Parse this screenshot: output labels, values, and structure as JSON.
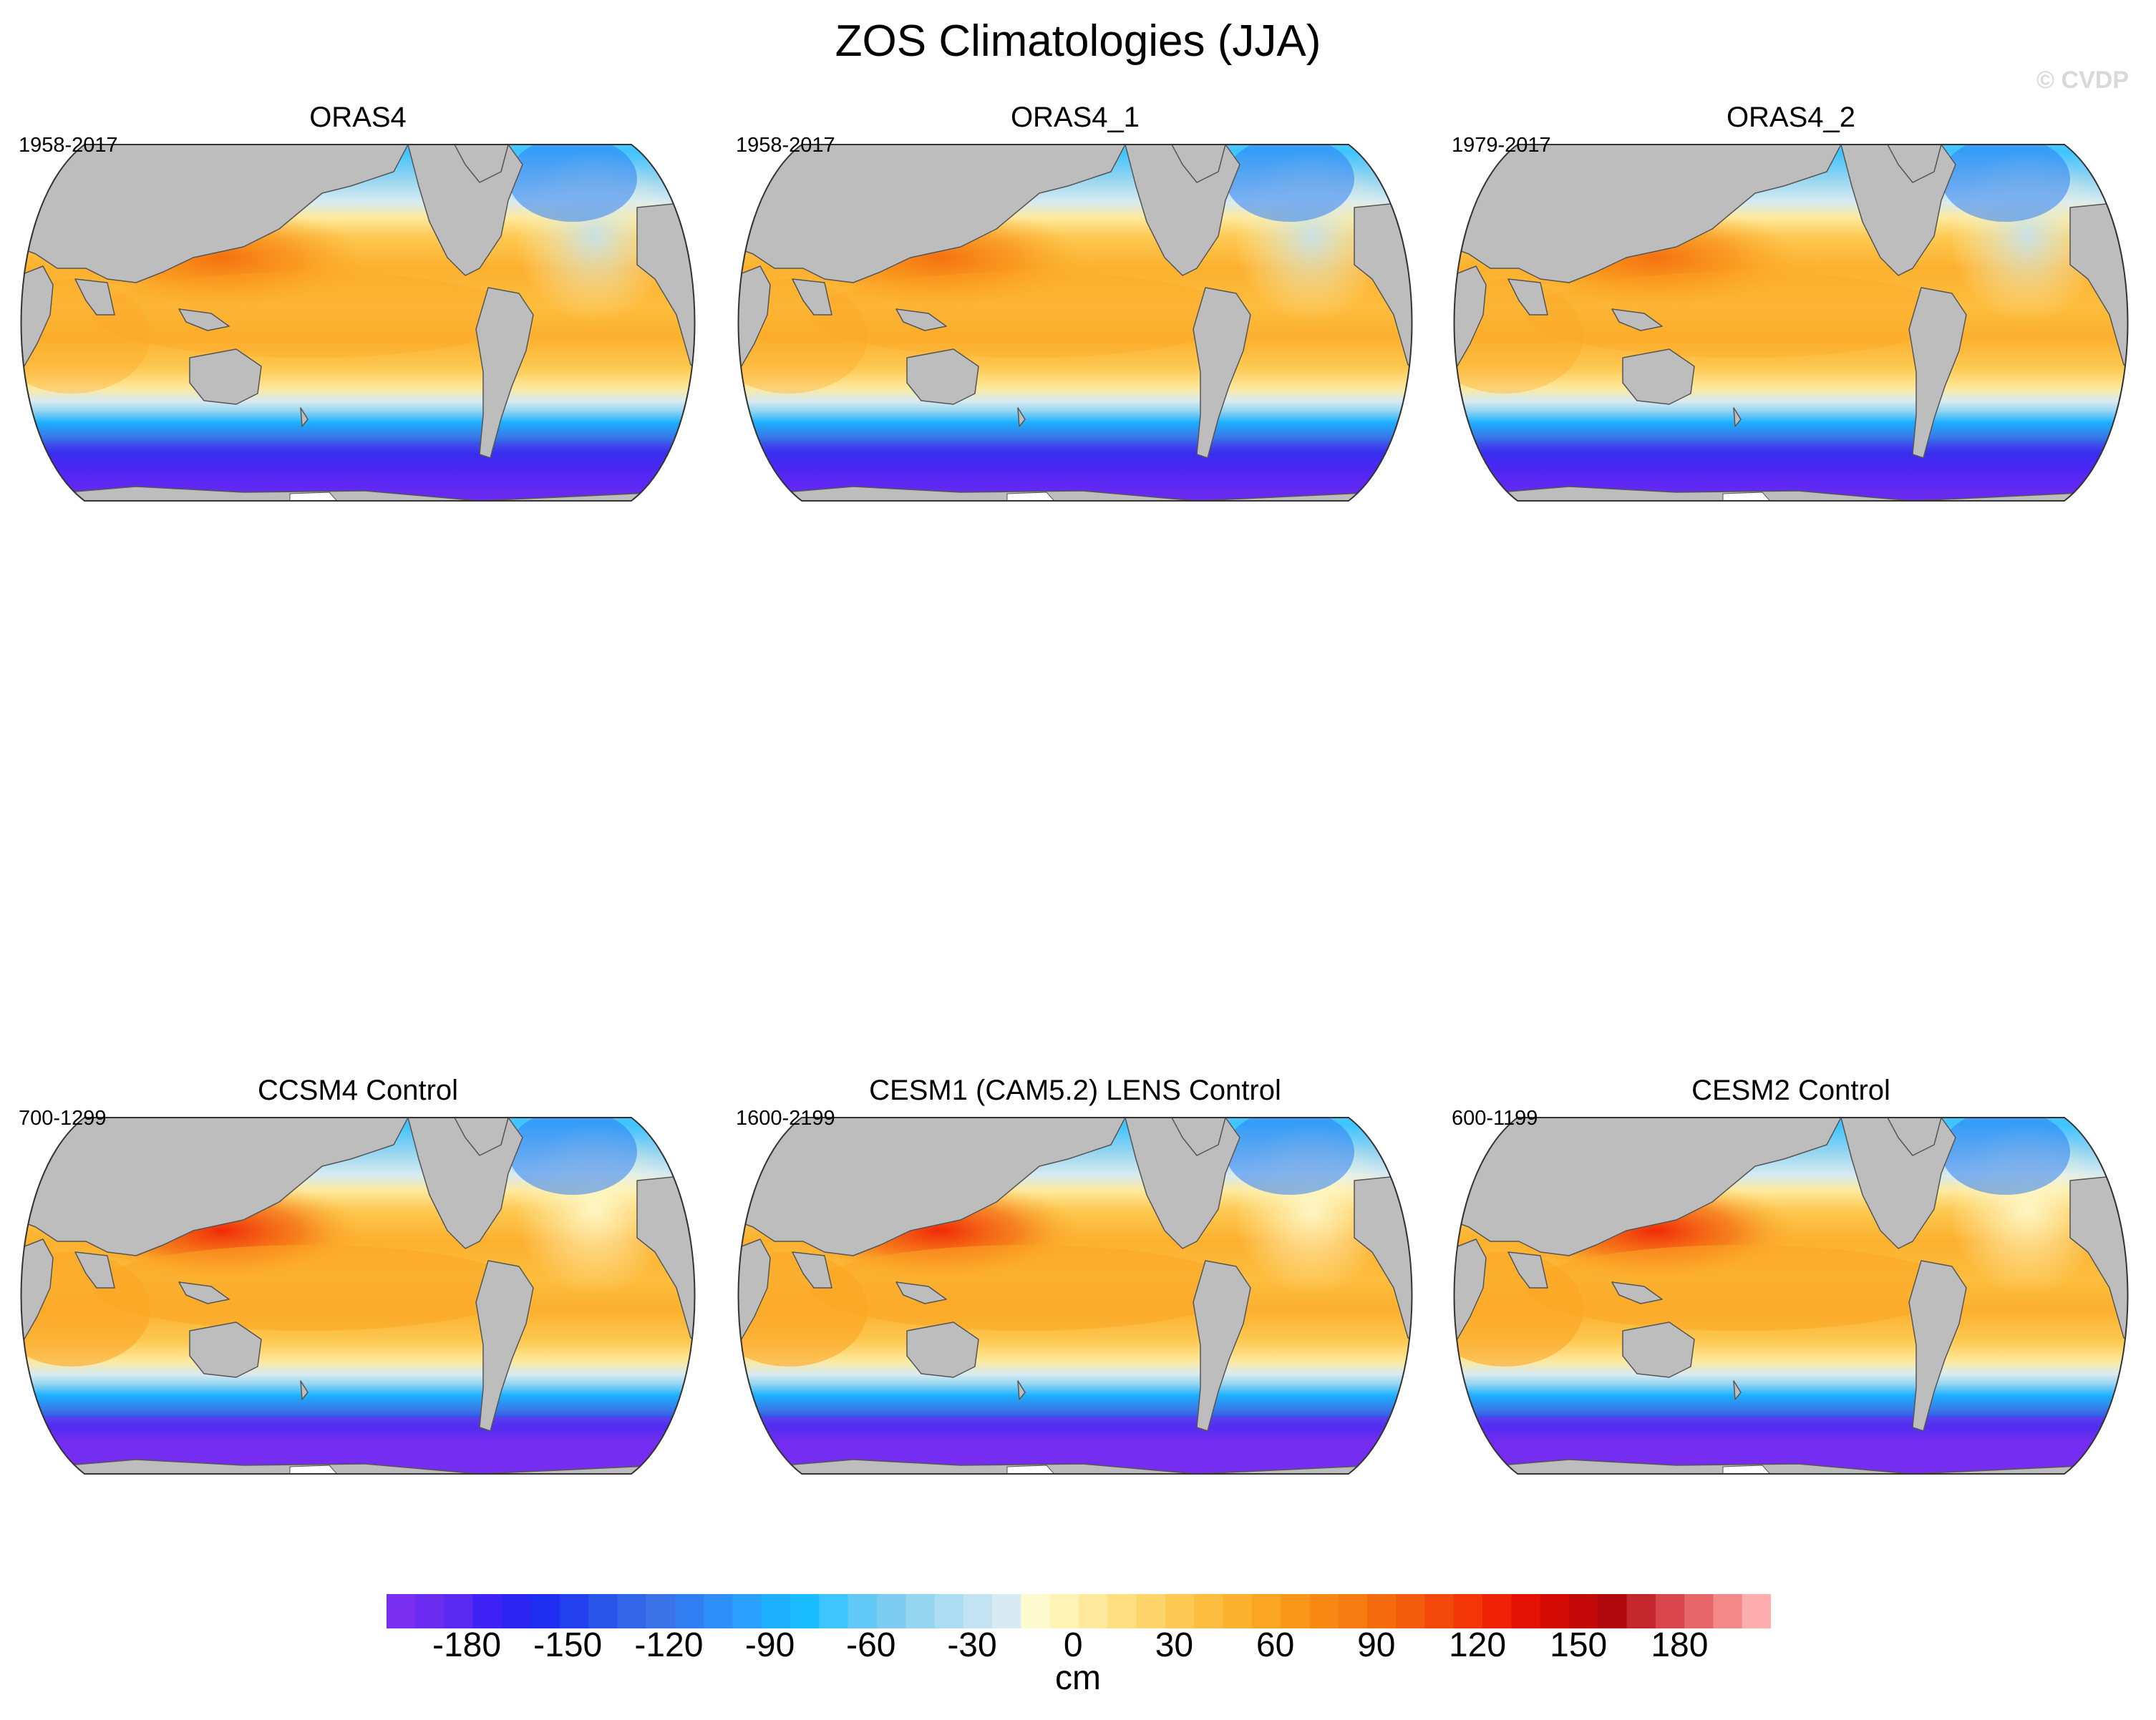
{
  "figure": {
    "title": "ZOS Climatologies (JJA)",
    "watermark": "© CVDP"
  },
  "panels": [
    {
      "title": "ORAS4",
      "years": "1958-2017",
      "variant": "obs",
      "atlantic": "low"
    },
    {
      "title": "ORAS4_1",
      "years": "1958-2017",
      "variant": "obs",
      "atlantic": "low"
    },
    {
      "title": "ORAS4_2",
      "years": "1979-2017",
      "variant": "obs",
      "atlantic": "low"
    },
    {
      "title": "CCSM4 Control",
      "years": "700-1299",
      "variant": "model",
      "atlantic": "high"
    },
    {
      "title": "CESM1 (CAM5.2) LENS Control",
      "years": "1600-2199",
      "variant": "model",
      "atlantic": "high"
    },
    {
      "title": "CESM2 Control",
      "years": "600-1199",
      "variant": "model",
      "atlantic": "high"
    }
  ],
  "colors": {
    "land": "#bdbdbd",
    "coast": "#555555",
    "levels": [
      "#7a2ef0",
      "#6a2cf0",
      "#5a2af2",
      "#3f22f5",
      "#2b25f2",
      "#1f2ef0",
      "#2240ee",
      "#2a55ea",
      "#3265e8",
      "#3a74e8",
      "#2f7ff2",
      "#2f8ff8",
      "#2aa0ff",
      "#1cb0ff",
      "#18bcff",
      "#3ec4ff",
      "#62c8f4",
      "#7ccdf0",
      "#96d5f0",
      "#acdcf2",
      "#c2e3f2",
      "#d8ebf2",
      "#fffbd0",
      "#fff3b6",
      "#fee99c",
      "#fedf82",
      "#fdd56a",
      "#fdc952",
      "#fdbd3e",
      "#fcb12e",
      "#fba524",
      "#fa971a",
      "#f88914",
      "#f67b10",
      "#f46c0e",
      "#f25c0c",
      "#f2480a",
      "#f33508",
      "#f02206",
      "#e41204",
      "#d40a04",
      "#c20808",
      "#b0080c",
      "#c4262e",
      "#d8464c",
      "#e8676a",
      "#f4898a",
      "#fcaeae"
    ]
  },
  "colorbar": {
    "labels": [
      "-180",
      "-150",
      "-120",
      "-90",
      "-60",
      "-30",
      "0",
      "30",
      "60",
      "90",
      "120",
      "150",
      "180"
    ],
    "unit": "cm"
  }
}
